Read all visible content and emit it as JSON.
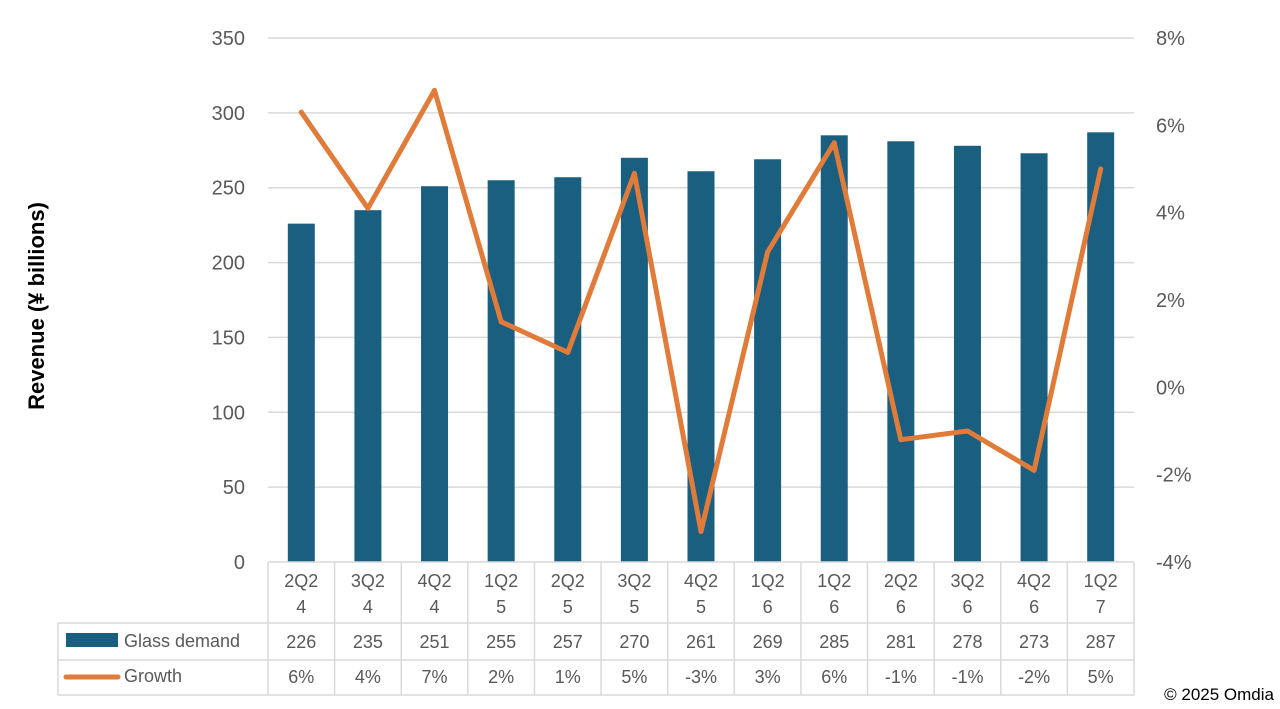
{
  "chart_data": {
    "type": "bar",
    "title": "",
    "ylabel": "Revenue (¥ billions)",
    "ylim": [
      0,
      350
    ],
    "yticks": [
      "0",
      "50",
      "100",
      "150",
      "200",
      "250",
      "300",
      "350"
    ],
    "y2lim": [
      -4,
      8
    ],
    "y2ticks": [
      "-4%",
      "-2%",
      "0%",
      "2%",
      "4%",
      "6%",
      "8%"
    ],
    "grid": true,
    "legend": "data-table",
    "categories": [
      [
        "2Q2",
        "4"
      ],
      [
        "3Q2",
        "4"
      ],
      [
        "4Q2",
        "4"
      ],
      [
        "1Q2",
        "5"
      ],
      [
        "2Q2",
        "5"
      ],
      [
        "3Q2",
        "5"
      ],
      [
        "4Q2",
        "5"
      ],
      [
        "1Q2",
        "6"
      ],
      [
        "1Q2",
        "6"
      ],
      [
        "2Q2",
        "6"
      ],
      [
        "3Q2",
        "6"
      ],
      [
        "4Q2",
        "6"
      ],
      [
        "1Q2",
        "7"
      ]
    ],
    "series": [
      {
        "name": "Glass demand",
        "type": "bar",
        "axis": "left",
        "color": "#1a5e80",
        "values": [
          226,
          235,
          251,
          255,
          257,
          270,
          261,
          269,
          285,
          281,
          278,
          273,
          287
        ],
        "labels": [
          "226",
          "235",
          "251",
          "255",
          "257",
          "270",
          "261",
          "269",
          "285",
          "281",
          "278",
          "273",
          "287"
        ]
      },
      {
        "name": "Growth",
        "type": "line",
        "axis": "right",
        "color": "#e07b39",
        "values": [
          6.3,
          4.1,
          6.8,
          1.5,
          0.8,
          4.9,
          -3.3,
          3.1,
          5.6,
          -1.2,
          -1.0,
          -1.9,
          5.0
        ],
        "labels": [
          "6%",
          "4%",
          "7%",
          "2%",
          "1%",
          "5%",
          "-3%",
          "3%",
          "6%",
          "-1%",
          "-1%",
          "-2%",
          "5%"
        ]
      }
    ]
  },
  "copyright": "© 2025 Omdia"
}
